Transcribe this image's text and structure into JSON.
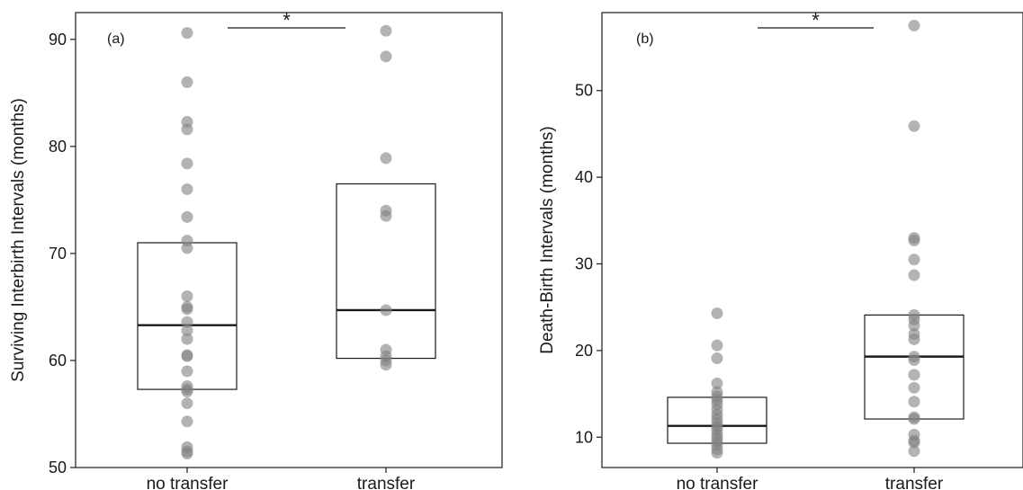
{
  "chart_data": [
    {
      "type": "scatter",
      "panel_label": "(a)",
      "ylabel": "Surviving Interbirth Intervals (months)",
      "categories": [
        "no transfer",
        "transfer"
      ],
      "ylim": [
        50,
        92.5
      ],
      "yticks": [
        50,
        60,
        70,
        80,
        90
      ],
      "boxes": [
        {
          "category": "no transfer",
          "q1": 57.3,
          "median": 63.3,
          "q3": 71.0
        },
        {
          "category": "transfer",
          "q1": 60.2,
          "median": 64.7,
          "q3": 76.5
        }
      ],
      "points": [
        {
          "category": "no transfer",
          "values": [
            90.6,
            86.0,
            82.3,
            81.6,
            78.4,
            76.0,
            73.4,
            71.2,
            70.5,
            66.0,
            65.0,
            64.8,
            63.6,
            62.8,
            62.0,
            60.5,
            60.4,
            59.0,
            57.6,
            57.3,
            57.1,
            56.0,
            54.3,
            51.9,
            51.5,
            51.3
          ]
        },
        {
          "category": "transfer",
          "values": [
            90.8,
            88.4,
            78.9,
            74.0,
            73.5,
            64.7,
            61.0,
            60.4,
            60.0,
            59.6
          ]
        }
      ],
      "significance": {
        "between": [
          "no transfer",
          "transfer"
        ],
        "label": "*"
      },
      "grid": false
    },
    {
      "type": "scatter",
      "panel_label": "(b)",
      "ylabel": "Death-Birth Intervals (months)",
      "categories": [
        "no transfer",
        "transfer"
      ],
      "ylim": [
        6.5,
        59
      ],
      "yticks": [
        10,
        20,
        30,
        40,
        50
      ],
      "boxes": [
        {
          "category": "no transfer",
          "q1": 9.3,
          "median": 11.3,
          "q3": 14.6
        },
        {
          "category": "transfer",
          "q1": 12.1,
          "median": 19.3,
          "q3": 24.1
        }
      ],
      "points": [
        {
          "category": "no transfer",
          "values": [
            24.3,
            20.6,
            19.1,
            16.2,
            15.2,
            14.7,
            14.3,
            13.8,
            13.2,
            12.6,
            12.1,
            11.6,
            11.2,
            10.8,
            10.3,
            9.9,
            9.5,
            9.1,
            8.6,
            8.2
          ]
        },
        {
          "category": "transfer",
          "values": [
            57.5,
            45.9,
            33.0,
            32.7,
            30.5,
            28.7,
            24.1,
            23.6,
            22.9,
            21.9,
            21.3,
            19.3,
            18.9,
            17.2,
            15.7,
            14.1,
            12.3,
            12.1,
            10.3,
            9.6,
            9.4,
            8.4
          ]
        }
      ],
      "significance": {
        "between": [
          "no transfer",
          "transfer"
        ],
        "label": "*"
      },
      "grid": false
    }
  ],
  "colors": {
    "point": "#808080",
    "box": "#1a1a1a",
    "axis": "#1a1a1a"
  }
}
